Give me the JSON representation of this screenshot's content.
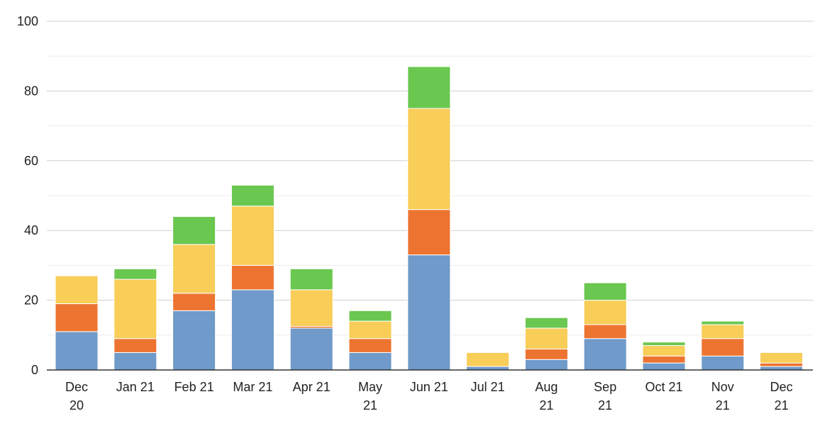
{
  "chart_data": {
    "type": "bar",
    "stacked": true,
    "title": "",
    "xlabel": "",
    "ylabel": "",
    "categories": [
      [
        "Dec",
        "20"
      ],
      [
        "Jan 21"
      ],
      [
        "Feb 21"
      ],
      [
        "Mar 21"
      ],
      [
        "Apr 21"
      ],
      [
        "May",
        "21"
      ],
      [
        "Jun 21"
      ],
      [
        "Jul 21"
      ],
      [
        "Aug",
        "21"
      ],
      [
        "Sep",
        "21"
      ],
      [
        "Oct 21"
      ],
      [
        "Nov",
        "21"
      ],
      [
        "Dec",
        "21"
      ]
    ],
    "series": [
      {
        "color": "#6f9ac9",
        "values": [
          11,
          5,
          17,
          23,
          12,
          5,
          33,
          1,
          3,
          9,
          2,
          4,
          1
        ]
      },
      {
        "color": "#ed7430",
        "values": [
          8,
          4,
          5,
          7,
          0.5,
          4,
          13,
          0,
          3,
          4,
          2,
          5,
          1
        ]
      },
      {
        "color": "#f8cd58",
        "values": [
          8,
          17,
          14,
          17,
          10.5,
          5,
          29,
          4,
          6,
          7,
          3,
          4,
          3
        ]
      },
      {
        "color": "#6ac74f",
        "values": [
          0,
          3,
          8,
          6,
          6,
          3,
          12,
          0,
          3,
          5,
          1,
          1,
          0
        ]
      }
    ],
    "ylim": [
      0,
      100
    ],
    "yticks": [
      "0",
      "20",
      "40",
      "60",
      "80",
      "100"
    ],
    "grid": true,
    "legend": "none"
  }
}
